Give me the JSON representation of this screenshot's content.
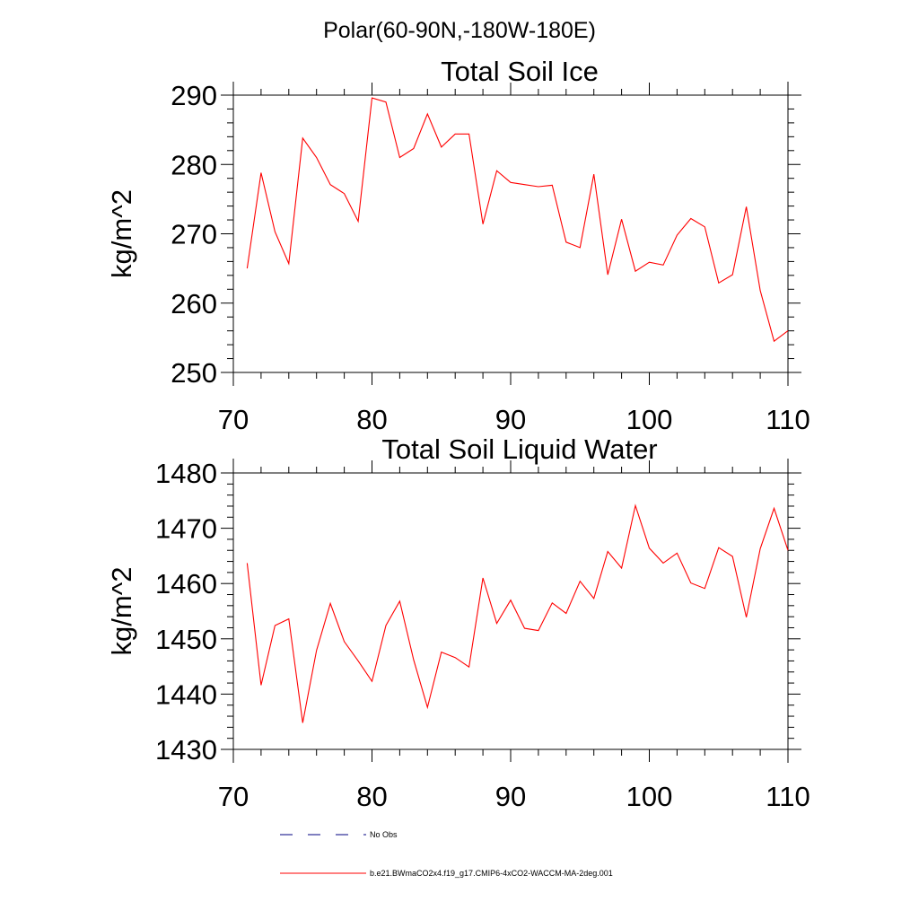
{
  "page_title": "Polar(60-90N,-180W-180E)",
  "chart_data": [
    {
      "type": "line",
      "title": "Total Soil Ice",
      "xlabel": "",
      "ylabel": "kg/m^2",
      "xlim": [
        70,
        110
      ],
      "ylim": [
        250,
        290
      ],
      "xticks": [
        70,
        80,
        90,
        100,
        110
      ],
      "yticks": [
        250,
        260,
        270,
        280,
        290
      ],
      "grid": false,
      "series": [
        {
          "name": "b.e21.BWmaCO2x4.f19_g17.CMIP6-4xCO2-WACCM-MA-2deg.001",
          "color": "#ff0000",
          "x": [
            71,
            72,
            73,
            74,
            75,
            76,
            77,
            78,
            79,
            80,
            81,
            82,
            83,
            84,
            85,
            86,
            87,
            88,
            89,
            90,
            91,
            92,
            93,
            94,
            95,
            96,
            97,
            98,
            99,
            100,
            101,
            102,
            103,
            104,
            105,
            106,
            107,
            108,
            109,
            110
          ],
          "values": [
            265.0,
            278.8,
            270.3,
            265.7,
            283.8,
            281.0,
            277.1,
            275.8,
            271.8,
            289.6,
            289.0,
            281.0,
            282.3,
            287.3,
            282.5,
            284.4,
            284.4,
            271.4,
            279.1,
            277.4,
            277.1,
            276.8,
            277.0,
            268.8,
            268.0,
            278.6,
            264.1,
            272.1,
            264.6,
            265.9,
            265.5,
            269.8,
            272.2,
            271.0,
            262.9,
            264.1,
            273.9,
            261.8,
            254.5,
            256.0
          ]
        }
      ]
    },
    {
      "type": "line",
      "title": "Total Soil Liquid Water",
      "xlabel": "",
      "ylabel": "kg/m^2",
      "xlim": [
        70,
        110
      ],
      "ylim": [
        1430,
        1480
      ],
      "xticks": [
        70,
        80,
        90,
        100,
        110
      ],
      "yticks": [
        1430,
        1440,
        1450,
        1460,
        1470,
        1480
      ],
      "grid": false,
      "series": [
        {
          "name": "b.e21.BWmaCO2x4.f19_g17.CMIP6-4xCO2-WACCM-MA-2deg.001",
          "color": "#ff0000",
          "x": [
            71,
            72,
            73,
            74,
            75,
            76,
            77,
            78,
            79,
            80,
            81,
            82,
            83,
            84,
            85,
            86,
            87,
            88,
            89,
            90,
            91,
            92,
            93,
            94,
            95,
            96,
            97,
            98,
            99,
            100,
            101,
            102,
            103,
            104,
            105,
            106,
            107,
            108,
            109,
            110
          ],
          "values": [
            1463.7,
            1441.6,
            1452.4,
            1453.6,
            1434.8,
            1447.9,
            1456.4,
            1449.5,
            1446.0,
            1442.3,
            1452.4,
            1456.8,
            1446.2,
            1437.6,
            1447.6,
            1446.6,
            1444.9,
            1461.0,
            1452.8,
            1457.0,
            1451.9,
            1451.5,
            1456.5,
            1454.6,
            1460.4,
            1457.3,
            1465.8,
            1462.8,
            1474.1,
            1466.4,
            1463.7,
            1465.5,
            1460.1,
            1459.1,
            1466.5,
            1464.9,
            1453.9,
            1466.3,
            1473.6,
            1466.0
          ]
        }
      ]
    }
  ],
  "legend": [
    {
      "label": "No Obs",
      "style": "dashed",
      "color": "#000080"
    },
    {
      "label": "b.e21.BWmaCO2x4.f19_g17.CMIP6-4xCO2-WACCM-MA-2deg.001",
      "style": "solid",
      "color": "#ff0000"
    }
  ]
}
